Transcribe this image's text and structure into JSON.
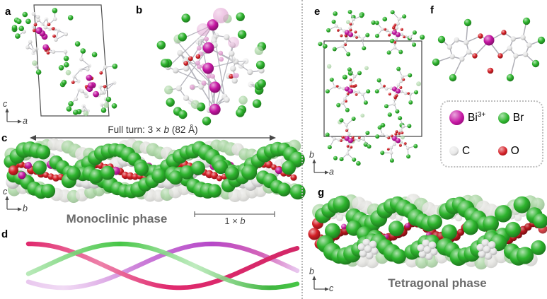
{
  "panels": {
    "a": {
      "label": "a",
      "axis_v": "c",
      "axis_h": "a"
    },
    "b": {
      "label": "b"
    },
    "c": {
      "label": "c",
      "axis_v": "c",
      "axis_h": "b",
      "full_turn_prefix": "Full turn: 3 × ",
      "full_turn_b": "b",
      "full_turn_suffix": " (82 Å)",
      "scale_prefix": "1 × ",
      "scale_b": "b",
      "caption": "Monoclinic phase"
    },
    "d": {
      "label": "d"
    },
    "e": {
      "label": "e",
      "axis_v": "b",
      "axis_h": "a"
    },
    "f": {
      "label": "f"
    },
    "g": {
      "label": "g",
      "axis_v": "b",
      "axis_h": "c",
      "caption": "Tetragonal phase"
    }
  },
  "legend": {
    "items": [
      {
        "symbol": "Bi",
        "charge": "3+",
        "hex": "#c516a2"
      },
      {
        "symbol": "Br",
        "charge": "",
        "hex": "#2db42d"
      },
      {
        "symbol": "C",
        "charge": "",
        "hex": "#e7e7e7"
      },
      {
        "symbol": "O",
        "charge": "",
        "hex": "#d41f26"
      }
    ]
  },
  "colors": {
    "bismuth": "#c516a2",
    "bromine": "#2db42d",
    "carbon": "#e7e7e7",
    "oxygen": "#d41f26",
    "oxygen_dark": "#b5161d",
    "bromine_pale": "#a9d6a2",
    "carbon_pale": "#e3e3df",
    "bismuth_pale": "#e4a3d4",
    "bond": "#b5b5bd",
    "strand_crimson": "#e02a6e",
    "strand_green": "#46c646",
    "strand_violet": "#b648c8"
  }
}
